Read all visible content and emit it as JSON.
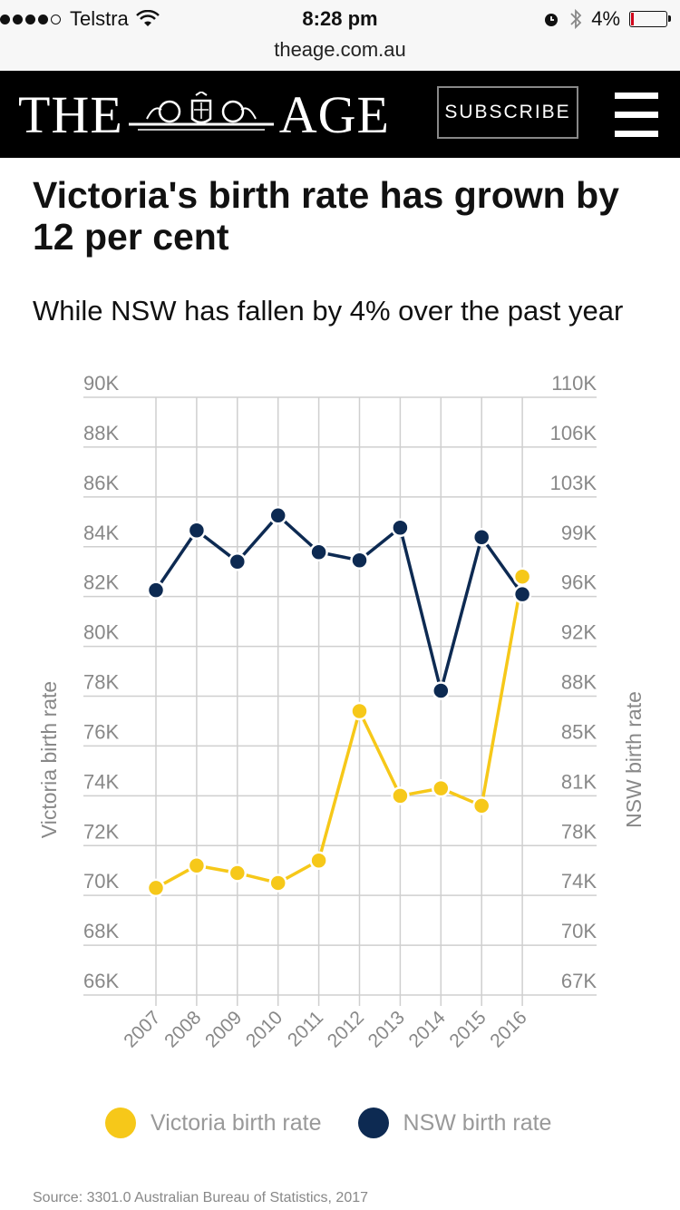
{
  "status_bar": {
    "carrier": "Telstra",
    "time": "8:28 pm",
    "battery": "4%",
    "url": "theage.com.au"
  },
  "masthead": {
    "logo_left": "THE",
    "logo_right": "AGE",
    "subscribe_label": "SUBSCRIBE"
  },
  "article": {
    "headline": "Victoria's birth rate has grown by 12 per cent",
    "subhead": "While NSW has fallen by 4% over the past year",
    "source": "Source: 3301.0 Australian Bureau of Statistics, 2017"
  },
  "chart_data": {
    "type": "line",
    "categories": [
      "2007",
      "2008",
      "2009",
      "2010",
      "2011",
      "2012",
      "2013",
      "2014",
      "2015",
      "2016"
    ],
    "series": [
      {
        "name": "Victoria birth rate",
        "axis": "left",
        "color": "#f6c819",
        "values": [
          70300,
          71200,
          70900,
          70500,
          71400,
          77400,
          74000,
          74300,
          73600,
          82800
        ]
      },
      {
        "name": "NSW birth rate",
        "axis": "right",
        "color": "#0d2a52",
        "values": [
          95800,
          100200,
          97900,
          101300,
          98600,
          98000,
          100400,
          88400,
          99700,
          95500
        ]
      }
    ],
    "ylabel_left": "Victoria birth rate",
    "ylabel_right": "NSW birth rate",
    "yticks_left": [
      "90K",
      "88K",
      "86K",
      "84K",
      "82K",
      "80K",
      "78K",
      "76K",
      "74K",
      "72K",
      "70K",
      "68K",
      "66K"
    ],
    "yticks_right": [
      "110K",
      "106K",
      "103K",
      "99K",
      "96K",
      "92K",
      "88K",
      "85K",
      "81K",
      "78K",
      "74K",
      "70K",
      "67K"
    ],
    "ylim_left": [
      66000,
      90000
    ],
    "ylim_right": [
      66000,
      110000
    ],
    "grid": true,
    "legend": "bottom"
  }
}
